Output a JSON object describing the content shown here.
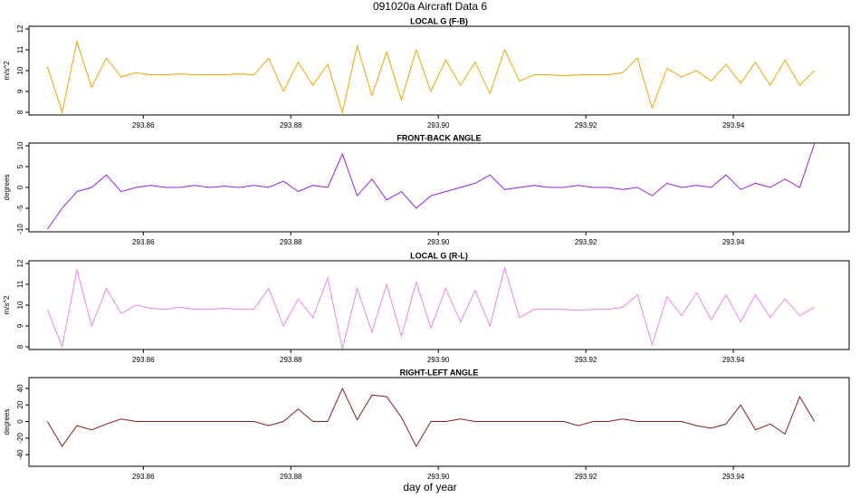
{
  "title": "091020a   Aircraft Data 6",
  "xlabel": "day of year",
  "chart_data": [
    {
      "type": "line",
      "title": "LOCAL G (F-B)",
      "ylabel": "m/s^2",
      "color": "#f5a300",
      "x": [
        293.847,
        293.849,
        293.851,
        293.853,
        293.855,
        293.857,
        293.859,
        293.861,
        293.863,
        293.865,
        293.867,
        293.869,
        293.871,
        293.873,
        293.875,
        293.877,
        293.879,
        293.881,
        293.883,
        293.885,
        293.887,
        293.889,
        293.891,
        293.893,
        293.895,
        293.897,
        293.899,
        293.901,
        293.903,
        293.905,
        293.907,
        293.909,
        293.911,
        293.913,
        293.915,
        293.917,
        293.919,
        293.921,
        293.923,
        293.925,
        293.927,
        293.929,
        293.931,
        293.933,
        293.935,
        293.937,
        293.939,
        293.941,
        293.943,
        293.945,
        293.947,
        293.949,
        293.951
      ],
      "values": [
        10.2,
        8.0,
        11.4,
        9.2,
        10.6,
        9.7,
        9.9,
        9.8,
        9.8,
        9.85,
        9.8,
        9.8,
        9.8,
        9.85,
        9.8,
        10.6,
        9.0,
        10.4,
        9.3,
        10.3,
        8.0,
        11.2,
        8.8,
        10.9,
        8.6,
        11.0,
        9.0,
        10.5,
        9.3,
        10.4,
        8.9,
        11.0,
        9.5,
        9.8,
        9.8,
        9.75,
        9.8,
        9.8,
        9.8,
        9.9,
        10.6,
        8.2,
        10.1,
        9.7,
        10.0,
        9.5,
        10.3,
        9.4,
        10.4,
        9.3,
        10.5,
        9.3,
        10.0
      ],
      "xlim": [
        293.8445,
        293.9557
      ],
      "xticks": [
        293.86,
        293.88,
        {
          "value": 293.9,
          "label": "293.90"
        },
        293.92,
        293.94
      ],
      "ylim": [
        7.87,
        12.13
      ],
      "yticks": [
        8,
        9,
        10,
        11,
        12
      ]
    },
    {
      "type": "line",
      "title": "FRONT-BACK ANGLE",
      "ylabel": "degrees",
      "color": "#9b1ee8",
      "x": [
        293.847,
        293.849,
        293.851,
        293.853,
        293.855,
        293.857,
        293.859,
        293.861,
        293.863,
        293.865,
        293.867,
        293.869,
        293.871,
        293.873,
        293.875,
        293.877,
        293.879,
        293.881,
        293.883,
        293.885,
        293.887,
        293.889,
        293.891,
        293.893,
        293.895,
        293.897,
        293.899,
        293.901,
        293.903,
        293.905,
        293.907,
        293.909,
        293.911,
        293.913,
        293.915,
        293.917,
        293.919,
        293.921,
        293.923,
        293.925,
        293.927,
        293.929,
        293.931,
        293.933,
        293.935,
        293.937,
        293.939,
        293.941,
        293.943,
        293.945,
        293.947,
        293.949,
        293.951
      ],
      "values": [
        -10,
        -5,
        -1,
        0,
        3,
        -1,
        0,
        0.5,
        0,
        0,
        0.5,
        0,
        0.3,
        0,
        0.5,
        0,
        1.5,
        -1,
        0.5,
        0,
        8,
        -2,
        2,
        -3,
        -1,
        -5,
        -2,
        -1,
        0,
        1,
        3,
        -0.5,
        0,
        0.5,
        0,
        0,
        0.5,
        0,
        0,
        -0.5,
        0,
        -2,
        1,
        0,
        0.5,
        0,
        3,
        -0.5,
        1,
        0,
        2,
        0,
        10.5
      ],
      "xlim": [
        293.8445,
        293.9557
      ],
      "xticks": [
        293.86,
        293.88,
        {
          "value": 293.9,
          "label": "293.90"
        },
        293.92,
        293.94
      ],
      "ylim": [
        -10.65,
        10.65
      ],
      "yticks": [
        -10,
        -5,
        0,
        5,
        10
      ]
    },
    {
      "type": "line",
      "title": "LOCAL G (R-L)",
      "ylabel": "m/s^2",
      "color": "#ee82ee",
      "x": [
        293.847,
        293.849,
        293.851,
        293.853,
        293.855,
        293.857,
        293.859,
        293.861,
        293.863,
        293.865,
        293.867,
        293.869,
        293.871,
        293.873,
        293.875,
        293.877,
        293.879,
        293.881,
        293.883,
        293.885,
        293.887,
        293.889,
        293.891,
        293.893,
        293.895,
        293.897,
        293.899,
        293.901,
        293.903,
        293.905,
        293.907,
        293.909,
        293.911,
        293.913,
        293.915,
        293.917,
        293.919,
        293.921,
        293.923,
        293.925,
        293.927,
        293.929,
        293.931,
        293.933,
        293.935,
        293.937,
        293.939,
        293.941,
        293.943,
        293.945,
        293.947,
        293.949,
        293.951
      ],
      "values": [
        9.8,
        8.0,
        11.7,
        9.0,
        10.8,
        9.6,
        10.0,
        9.85,
        9.8,
        9.9,
        9.8,
        9.8,
        9.85,
        9.8,
        9.8,
        10.8,
        9.0,
        10.3,
        9.4,
        11.3,
        7.9,
        10.8,
        8.7,
        11.0,
        8.5,
        11.1,
        8.9,
        10.8,
        9.2,
        10.7,
        9.0,
        11.8,
        9.4,
        9.8,
        9.8,
        9.8,
        9.75,
        9.8,
        9.8,
        9.9,
        10.5,
        8.1,
        10.4,
        9.5,
        10.6,
        9.3,
        10.5,
        9.2,
        10.5,
        9.4,
        10.3,
        9.5,
        9.9
      ],
      "xlim": [
        293.8445,
        293.9557
      ],
      "xticks": [
        293.86,
        293.88,
        {
          "value": 293.9,
          "label": "293.90"
        },
        293.92,
        293.94
      ],
      "ylim": [
        7.87,
        12.13
      ],
      "yticks": [
        8,
        9,
        10,
        11,
        12
      ]
    },
    {
      "type": "line",
      "title": "RIGHT-LEFT ANGLE",
      "ylabel": "degrees",
      "color": "#8b1a1a",
      "x": [
        293.847,
        293.849,
        293.851,
        293.853,
        293.855,
        293.857,
        293.859,
        293.861,
        293.863,
        293.865,
        293.867,
        293.869,
        293.871,
        293.873,
        293.875,
        293.877,
        293.879,
        293.881,
        293.883,
        293.885,
        293.887,
        293.889,
        293.891,
        293.893,
        293.895,
        293.897,
        293.899,
        293.901,
        293.903,
        293.905,
        293.907,
        293.909,
        293.911,
        293.913,
        293.915,
        293.917,
        293.919,
        293.921,
        293.923,
        293.925,
        293.927,
        293.929,
        293.931,
        293.933,
        293.935,
        293.937,
        293.939,
        293.941,
        293.943,
        293.945,
        293.947,
        293.949,
        293.951
      ],
      "values": [
        0,
        -30,
        -5,
        -10,
        -3,
        3,
        0,
        0,
        0,
        0,
        0,
        0,
        0,
        0,
        0,
        -5,
        0,
        15,
        0,
        0,
        40,
        2,
        32,
        30,
        5,
        -30,
        0,
        0,
        3,
        0,
        0,
        0,
        0,
        0,
        0,
        0,
        -5,
        0,
        0,
        3,
        0,
        0,
        0,
        0,
        -5,
        -8,
        -3,
        20,
        -10,
        -3,
        -15,
        30,
        0
      ],
      "xlim": [
        293.8445,
        293.9557
      ],
      "xticks": [
        293.86,
        293.88,
        {
          "value": 293.9,
          "label": "293.90"
        },
        293.92,
        293.94
      ],
      "ylim": [
        -54,
        53
      ],
      "yticks": [
        -40,
        -20,
        0,
        20,
        40
      ]
    }
  ]
}
